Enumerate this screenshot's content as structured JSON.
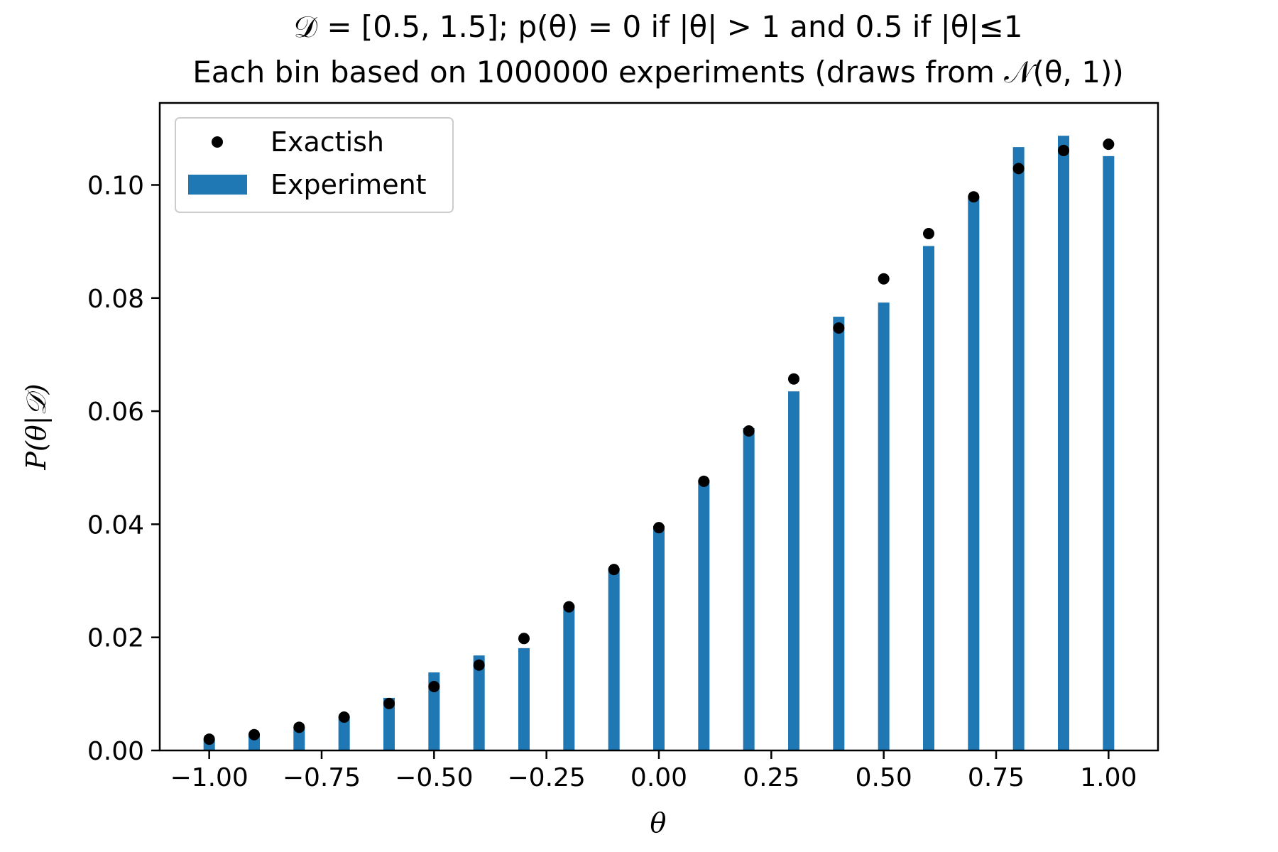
{
  "chart_data": {
    "type": "bar",
    "title_lines": [
      "𝒟 = [0.5, 1.5]; p(θ) = 0 if |θ| > 1 and 0.5 if |θ|≤1",
      "Each bin based on 1000000 experiments (draws from 𝒩(θ, 1))"
    ],
    "xlabel": "θ",
    "ylabel": "P(θ|𝒟)",
    "xlim": [
      -1.11,
      1.11
    ],
    "ylim": [
      0,
      0.1145
    ],
    "xticks": [
      -1.0,
      -0.75,
      -0.5,
      -0.25,
      0.0,
      0.25,
      0.5,
      0.75,
      1.0
    ],
    "xtick_labels": [
      "−1.00",
      "−0.75",
      "−0.50",
      "−0.25",
      "0.00",
      "0.25",
      "0.50",
      "0.75",
      "1.00"
    ],
    "yticks": [
      0.0,
      0.02,
      0.04,
      0.06,
      0.08,
      0.1
    ],
    "ytick_labels": [
      "0.00",
      "0.02",
      "0.04",
      "0.06",
      "0.08",
      "0.10"
    ],
    "x": [
      -1.0,
      -0.9,
      -0.8,
      -0.7,
      -0.6,
      -0.5,
      -0.4,
      -0.3,
      -0.2,
      -0.1,
      0.0,
      0.1,
      0.2,
      0.3,
      0.4,
      0.5,
      0.6,
      0.7,
      0.8,
      0.9,
      1.0
    ],
    "series": [
      {
        "name": "Experiment",
        "kind": "bar",
        "color": "#1f77b4",
        "values": [
          0.002,
          0.0029,
          0.0041,
          0.006,
          0.0093,
          0.0138,
          0.0168,
          0.0181,
          0.0257,
          0.0322,
          0.0397,
          0.0478,
          0.057,
          0.0635,
          0.0767,
          0.0792,
          0.0892,
          0.098,
          0.1067,
          0.1087,
          0.1051
        ]
      },
      {
        "name": "Exactish",
        "kind": "point",
        "color": "#000000",
        "values": [
          0.002,
          0.0028,
          0.0041,
          0.0059,
          0.0083,
          0.0113,
          0.0151,
          0.0198,
          0.0254,
          0.032,
          0.0394,
          0.0476,
          0.0565,
          0.0657,
          0.0747,
          0.0834,
          0.0914,
          0.0979,
          0.1029,
          0.1061,
          0.1072
        ]
      }
    ],
    "legend_position": "upper-left",
    "grid": false
  }
}
